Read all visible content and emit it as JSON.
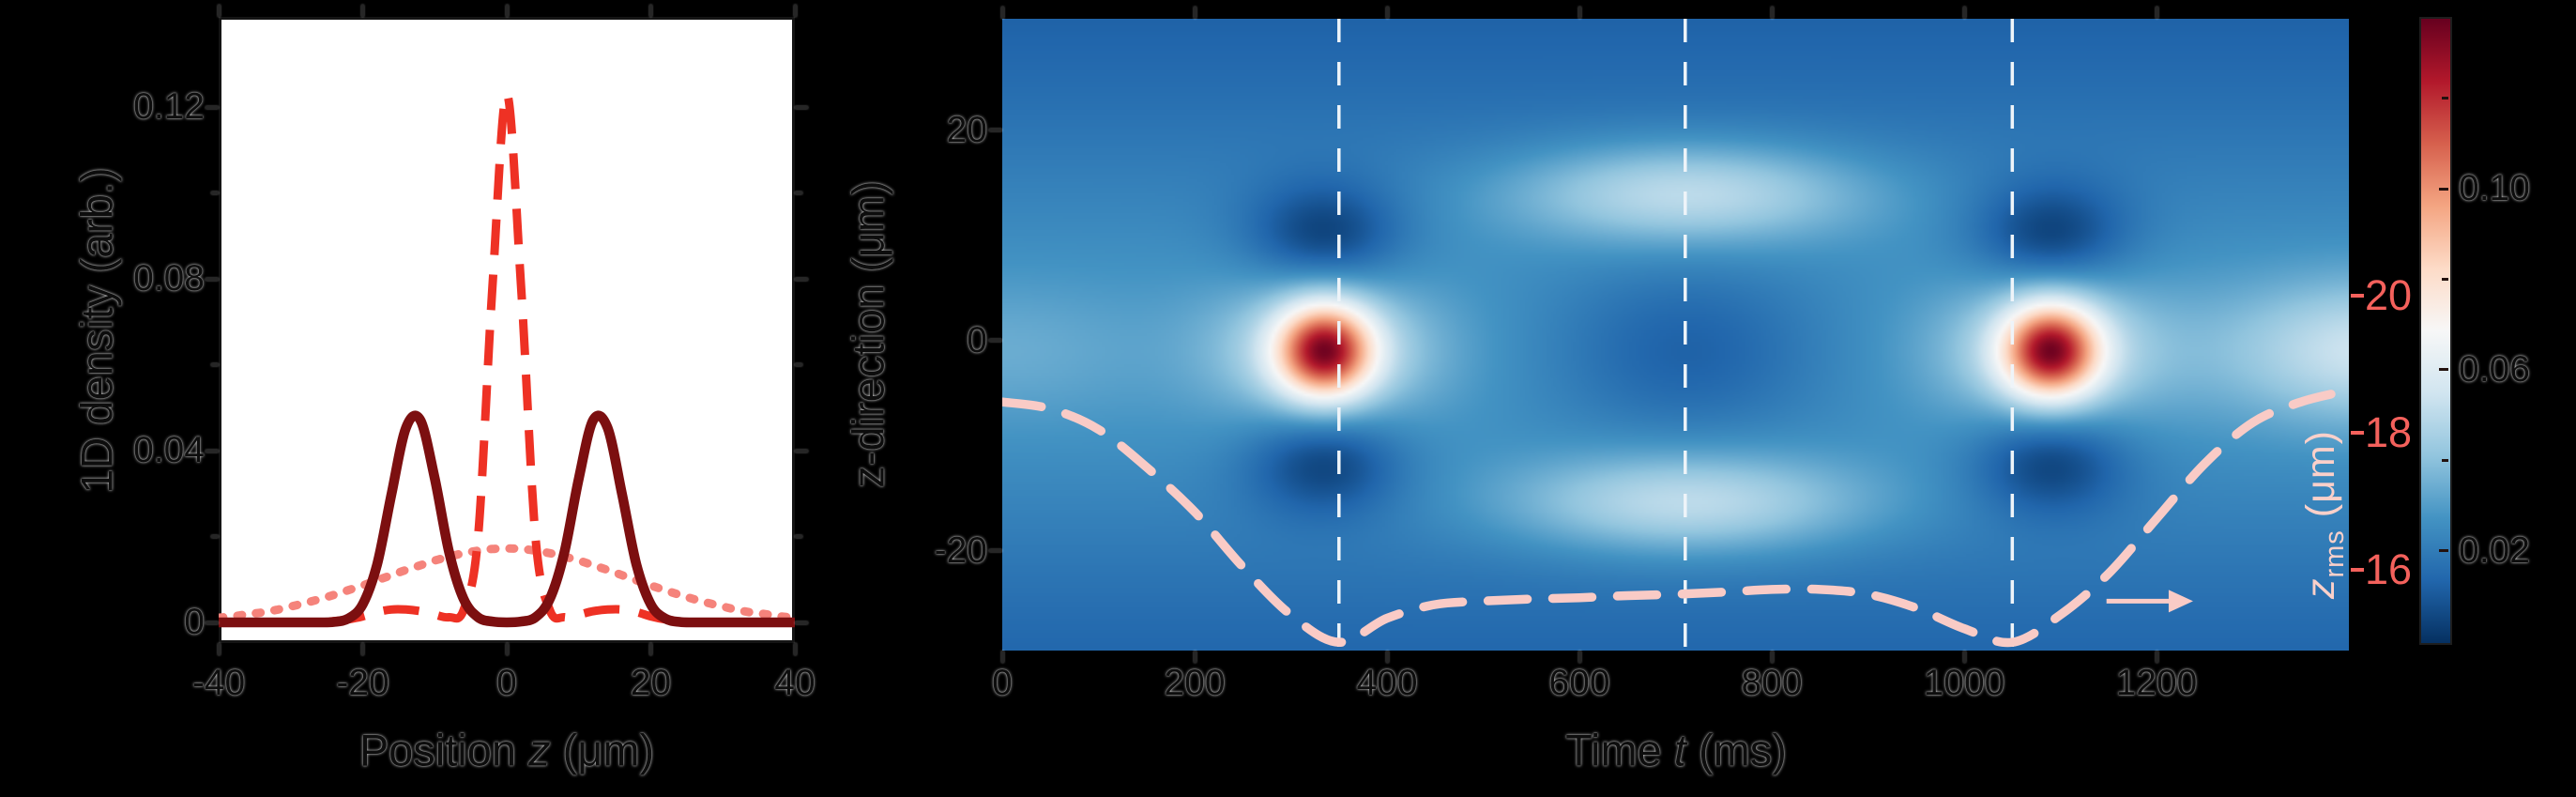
{
  "figure_bg": "#000000",
  "chart_data": [
    {
      "id": "density_profiles",
      "type": "line",
      "title": "",
      "xlabel": "Position z (μm)",
      "xlabel_parts": {
        "prefix": "Position ",
        "var": "z",
        "suffix": " (μm)"
      },
      "ylabel": "1D density (arb.)",
      "xlim": [
        -40,
        40
      ],
      "ylim": [
        0,
        0.1455
      ],
      "x_ticks": [
        -40,
        -20,
        0,
        20,
        40
      ],
      "y_ticks": [
        0,
        0.04,
        0.08,
        0.12
      ],
      "y_minor_ticks": [
        0.02,
        0.06,
        0.1
      ],
      "grid": false,
      "z": [
        -40,
        -38,
        -36,
        -34,
        -32,
        -30,
        -28,
        -26,
        -24,
        -22,
        -20,
        -18,
        -16,
        -14,
        -12,
        -10,
        -8,
        -6,
        -4,
        -2,
        0,
        2,
        4,
        6,
        8,
        10,
        12,
        14,
        16,
        18,
        20,
        22,
        24,
        26,
        28,
        30,
        32,
        34,
        36,
        38,
        40
      ],
      "series": [
        {
          "name": "broad dotted profile",
          "style": "dotted",
          "color": "#f5837b",
          "v": [
            0.0011,
            0.0014,
            0.0019,
            0.0023,
            0.0029,
            0.0037,
            0.0045,
            0.0054,
            0.0064,
            0.0075,
            0.0086,
            0.0098,
            0.011,
            0.0122,
            0.0133,
            0.0144,
            0.0153,
            0.0161,
            0.0167,
            0.0171,
            0.0172,
            0.0171,
            0.0167,
            0.0161,
            0.0153,
            0.0144,
            0.0133,
            0.0122,
            0.011,
            0.0098,
            0.0086,
            0.0075,
            0.0064,
            0.0054,
            0.0045,
            0.0037,
            0.0029,
            0.0023,
            0.0019,
            0.0014,
            0.0011
          ]
        },
        {
          "name": "narrow dashed profile",
          "style": "dashed",
          "color": "#ee3124",
          "v": [
            0.0,
            0.0,
            0.0,
            0.0001,
            0.0001,
            0.0001,
            0.0001,
            0.0001,
            0.0003,
            0.0007,
            0.0014,
            0.0024,
            0.003,
            0.003,
            0.0026,
            0.0018,
            0.0012,
            0.0028,
            0.0196,
            0.0777,
            0.123,
            0.0777,
            0.0196,
            0.0028,
            0.0012,
            0.0018,
            0.0026,
            0.003,
            0.003,
            0.0024,
            0.0014,
            0.0007,
            0.0003,
            0.0001,
            0.0001,
            0.0001,
            0.0001,
            0.0001,
            0.0,
            0.0,
            0.0
          ]
        },
        {
          "name": "double-peak solid profile",
          "style": "solid",
          "color": "#7c0f10",
          "v": [
            0.0,
            0.0,
            0.0,
            0.0,
            0.0,
            0.0,
            0.0,
            0.0,
            0.0001,
            0.0009,
            0.0042,
            0.0135,
            0.0299,
            0.0453,
            0.0471,
            0.0335,
            0.0163,
            0.0055,
            0.0012,
            0.0002,
            0.0,
            0.0002,
            0.0012,
            0.0055,
            0.0163,
            0.0335,
            0.0471,
            0.0453,
            0.0299,
            0.0135,
            0.0042,
            0.0009,
            0.0001,
            0.0,
            0.0,
            0.0,
            0.0,
            0.0,
            0.0,
            0.0,
            0.0
          ]
        }
      ]
    },
    {
      "id": "density_carpet",
      "type": "heatmap",
      "xlabel": "Time t (ms)",
      "xlabel_parts": {
        "prefix": "Time ",
        "var": "t",
        "suffix": " (ms)"
      },
      "ylabel": "z-direction (μm)",
      "xlim": [
        0,
        1400
      ],
      "ylim": [
        -29.5,
        30.6
      ],
      "x_ticks": [
        0,
        200,
        400,
        600,
        800,
        1000,
        1200
      ],
      "y_ticks": [
        20,
        0,
        -20
      ],
      "time_markers": [
        350,
        710,
        1050
      ],
      "marker_color": "#eef4f9",
      "vmax": 0.138,
      "colormap_rdbu_r": [
        "#053061",
        "#2166ac",
        "#4393c3",
        "#92c5de",
        "#d1e5f0",
        "#f7f7f7",
        "#fddbc7",
        "#f4a582",
        "#d6604d",
        "#b2182b",
        "#67001f"
      ],
      "heatmap_model": {
        "background": {
          "base": 0.009,
          "amp": 0.0195,
          "z_center": -1,
          "z_sigma": 25
        },
        "spikes": [
          {
            "t": 335,
            "amp": 0.082,
            "t_sigma": 48,
            "z_center": -1,
            "z_sigma": 4.3
          },
          {
            "t": 1090,
            "amp": 0.082,
            "t_sigma": 48,
            "z_center": -1,
            "z_sigma": 4.3
          }
        ],
        "halos": [
          {
            "t": 335,
            "amp": 0.026,
            "t_sigma": 110,
            "z_center": -1,
            "z_sigma": 6.5
          },
          {
            "t": 1090,
            "amp": 0.026,
            "t_sigma": 110,
            "z_center": -1,
            "z_sigma": 6.5
          },
          {
            "t": 0,
            "amp": 0.006,
            "t_sigma": 150,
            "z_center": -1,
            "z_sigma": 6.5
          },
          {
            "t": 1430,
            "amp": 0.027,
            "t_sigma": 160,
            "z_center": -1,
            "z_sigma": 6.5
          },
          {
            "t": 712,
            "amp": -0.0155,
            "t_sigma": 150,
            "z_center": -1,
            "z_sigma": 8.4
          }
        ],
        "shells": {
          "t": 712,
          "t_sigma": 185,
          "amp": 0.0285,
          "z_centers": [
            14,
            -15.5
          ],
          "z_sigma": 4.8
        },
        "dark_lobes": {
          "times": [
            335,
            1090
          ],
          "amp": 0.021,
          "t_sigma": 80,
          "z_centers": [
            10,
            -11.5
          ],
          "z_sigma": 5
        }
      },
      "zrms": {
        "label_main": "z",
        "label_sub": "rms",
        "label_unit": " (μm)",
        "curve_color": "#f9cbc6",
        "tick_color": "#f4615c",
        "axis_ticks": [
          16,
          18,
          20
        ],
        "axis_lim": [
          14.83,
          24.03
        ],
        "t": [
          0,
          50,
          100,
          150,
          200,
          250,
          300,
          350,
          400,
          450,
          500,
          550,
          600,
          650,
          700,
          750,
          800,
          850,
          900,
          950,
          1000,
          1050,
          1100,
          1150,
          1200,
          1250,
          1300,
          1350,
          1400
        ],
        "v": [
          18.45,
          18.35,
          18.05,
          17.5,
          16.85,
          16.05,
          15.35,
          14.95,
          15.3,
          15.5,
          15.55,
          15.58,
          15.6,
          15.63,
          15.65,
          15.68,
          15.72,
          15.72,
          15.65,
          15.45,
          15.15,
          14.95,
          15.35,
          15.95,
          16.75,
          17.55,
          18.15,
          18.45,
          18.62
        ],
        "arrow": {
          "t_from": 1148,
          "t_to": 1238,
          "z": 15.55
        }
      }
    },
    {
      "id": "colorbar",
      "type": "colorbar",
      "range": [
        0,
        0.138
      ],
      "tick_values": [
        0.02,
        0.06,
        0.1
      ],
      "tick_labels": [
        "0.02",
        "0.06",
        "0.10"
      ],
      "minor_tick_values": [
        0.04,
        0.08,
        0.12
      ]
    }
  ]
}
